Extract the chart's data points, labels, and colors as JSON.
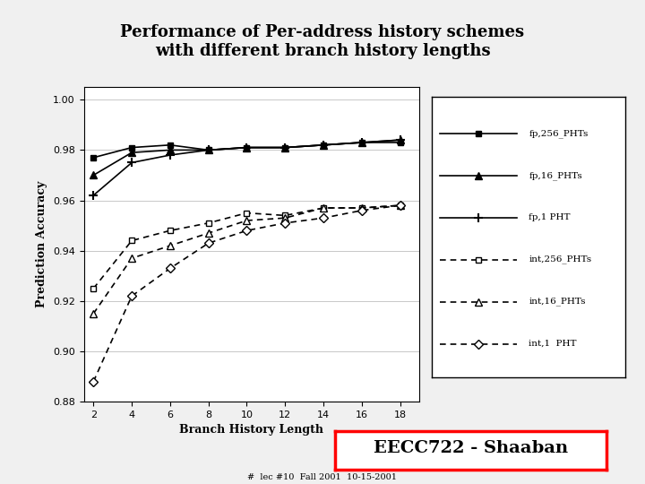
{
  "title": "Performance of Per-address history schemes\nwith different branch history lengths",
  "xlabel": "Branch History Length",
  "ylabel": "Prediction Accuracy",
  "x": [
    2,
    4,
    6,
    8,
    10,
    12,
    14,
    16,
    18
  ],
  "fp_256": [
    0.977,
    0.981,
    0.982,
    0.98,
    0.981,
    0.981,
    0.982,
    0.983,
    0.983
  ],
  "fp_16": [
    0.97,
    0.979,
    0.98,
    0.98,
    0.981,
    0.981,
    0.982,
    0.983,
    0.984
  ],
  "fp_1": [
    0.962,
    0.975,
    0.978,
    0.98,
    0.981,
    0.981,
    0.982,
    0.983,
    0.984
  ],
  "int_256": [
    0.925,
    0.944,
    0.948,
    0.951,
    0.955,
    0.954,
    0.957,
    0.957,
    0.958
  ],
  "int_16": [
    0.915,
    0.937,
    0.942,
    0.947,
    0.952,
    0.953,
    0.957,
    0.957,
    0.958
  ],
  "int_1": [
    0.888,
    0.922,
    0.933,
    0.943,
    0.948,
    0.951,
    0.953,
    0.956,
    0.958
  ],
  "ylim": [
    0.88,
    1.005
  ],
  "xlim": [
    1.5,
    19
  ],
  "yticks": [
    0.88,
    0.9,
    0.92,
    0.94,
    0.96,
    0.98,
    1.0
  ],
  "xticks": [
    2,
    4,
    6,
    8,
    10,
    12,
    14,
    16,
    18
  ],
  "bg_color": "#f0f0f0",
  "plot_bg": "#ffffff",
  "footer_text": "#  lec #10  Fall 2001  10-15-2001",
  "stamp_text": "EECC722 - Shaaban"
}
